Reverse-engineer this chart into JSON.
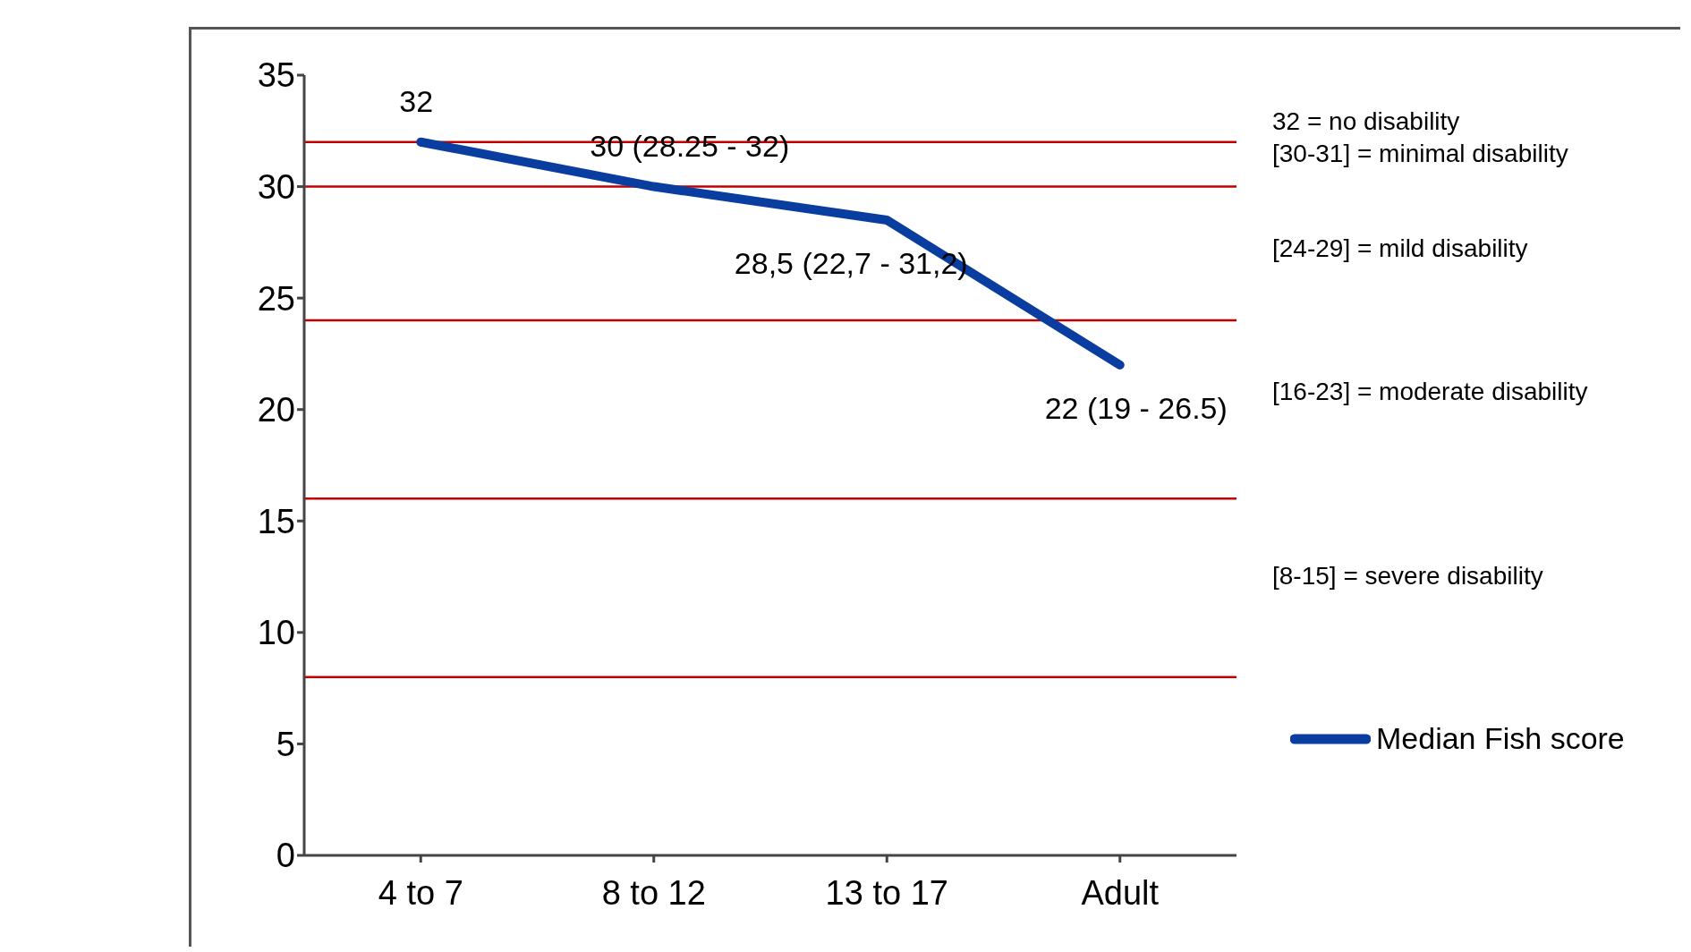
{
  "chart_data": {
    "type": "line",
    "categories": [
      "4 to 7",
      "8 to 12",
      "13 to 17",
      "Adult"
    ],
    "series": [
      {
        "name": "Median Fish score",
        "color": "#0a3da0",
        "values": [
          32,
          30,
          28.5,
          22
        ],
        "value_labels": [
          "32",
          "30 (28.25 - 32)",
          "28,5 (22,7 - 31,2)",
          "22 (19 - 26.5)"
        ]
      }
    ],
    "ylim": [
      0,
      35
    ],
    "yticks": [
      0,
      5,
      10,
      15,
      20,
      25,
      30,
      35
    ],
    "grid": false,
    "legend": "right",
    "marker": "none",
    "line_style": "solid",
    "ref_lines": [
      {
        "axis": "y",
        "value": 32,
        "color": "#c00000"
      },
      {
        "axis": "y",
        "value": 30,
        "color": "#c00000"
      },
      {
        "axis": "y",
        "value": 24,
        "color": "#c00000"
      },
      {
        "axis": "y",
        "value": 16,
        "color": "#c00000"
      },
      {
        "axis": "y",
        "value": 8,
        "color": "#c00000"
      }
    ],
    "annotations": [
      "32 = no disability",
      "[30-31] = minimal disability",
      "[24-29] = mild disability",
      "[16-23] = moderate disability",
      "[8-15] = severe disability"
    ]
  }
}
